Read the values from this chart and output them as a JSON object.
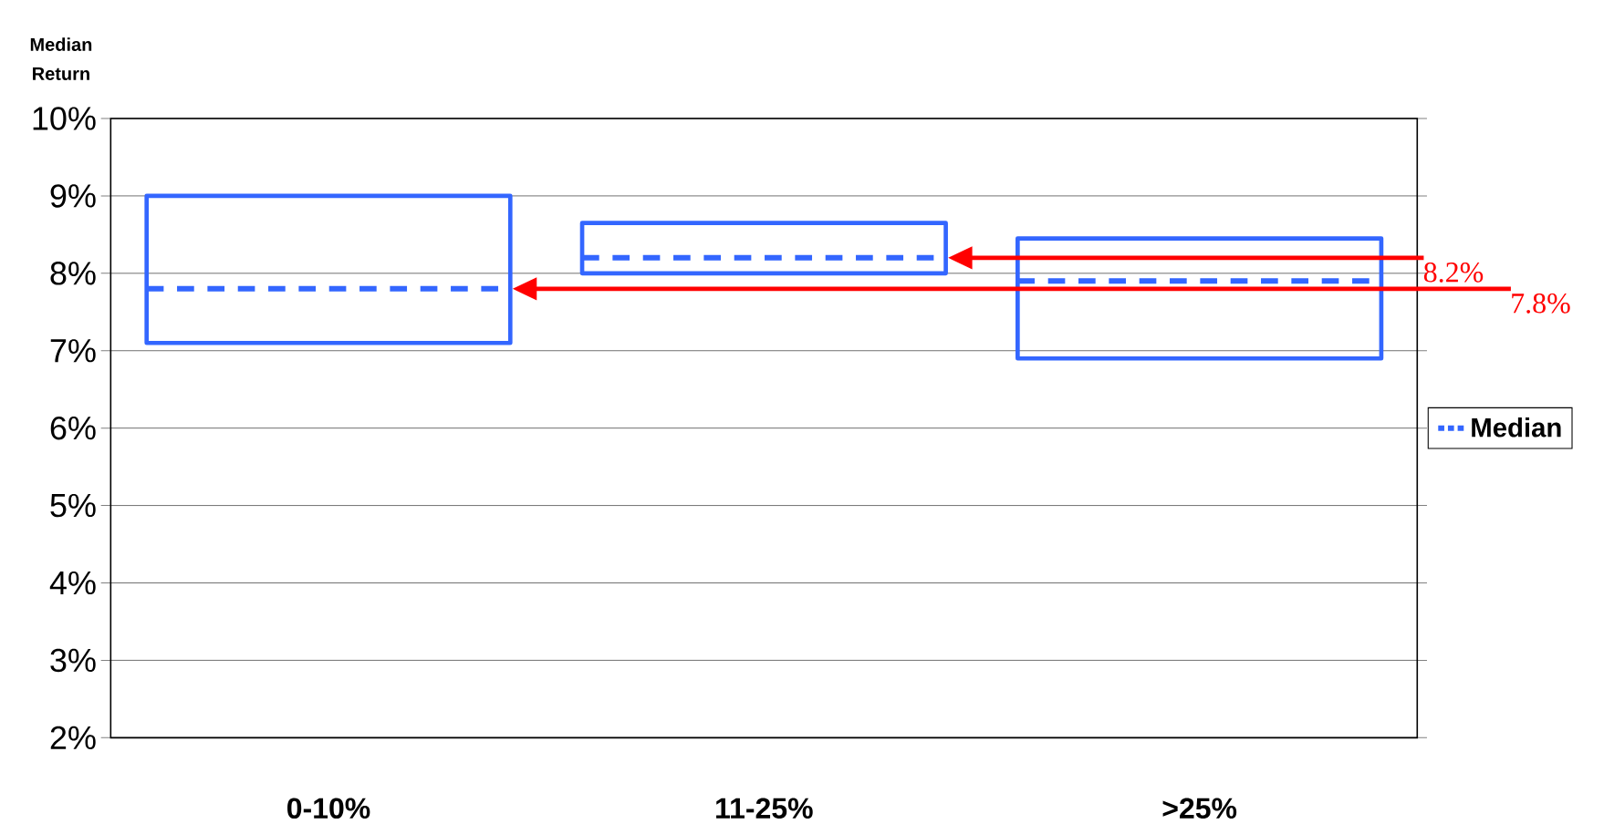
{
  "chart_data": {
    "type": "box",
    "ylabel": "Median Return",
    "categories": [
      "0-10%",
      "11-25%",
      ">25%"
    ],
    "series": [
      {
        "name": "Median",
        "color": "#3366ff",
        "boxes": [
          {
            "low": 7.1,
            "q1": 7.1,
            "median": 7.8,
            "q3": 9.0,
            "high": 9.0
          },
          {
            "low": 8.0,
            "q1": 8.0,
            "median": 8.2,
            "q3": 8.65,
            "high": 8.65
          },
          {
            "low": 6.9,
            "q1": 6.9,
            "median": 7.9,
            "q3": 8.45,
            "high": 8.45
          }
        ]
      }
    ],
    "ylim": [
      2,
      10
    ],
    "yticks": [
      {
        "value": 2,
        "label": "2%"
      },
      {
        "value": 3,
        "label": "3%"
      },
      {
        "value": 4,
        "label": "4%"
      },
      {
        "value": 5,
        "label": "5%"
      },
      {
        "value": 6,
        "label": "6%"
      },
      {
        "value": 7,
        "label": "7%"
      },
      {
        "value": 8,
        "label": "8%"
      },
      {
        "value": 9,
        "label": "9%"
      },
      {
        "value": 10,
        "label": "10%"
      }
    ],
    "grid": "y",
    "legend": "right",
    "line_style": "dashed",
    "annotations": [
      "8.2%",
      "7.8%"
    ]
  }
}
